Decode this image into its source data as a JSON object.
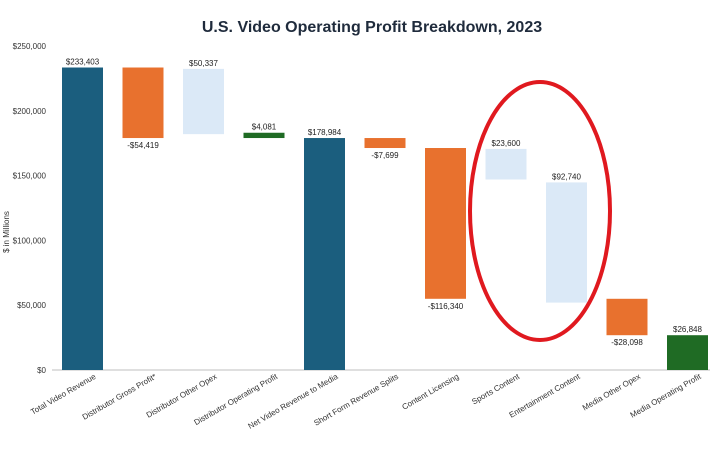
{
  "chart_data": {
    "type": "bar",
    "title": "U.S.  Video Operating Profit Breakdown, 2023",
    "ylabel": "$ in Millions",
    "xlabel": "",
    "ylim": [
      0,
      250000
    ],
    "yticks": [
      "$0",
      "$50,000",
      "$100,000",
      "$150,000",
      "$200,000",
      "$250,000"
    ],
    "ytick_values": [
      0,
      50000,
      100000,
      150000,
      200000,
      250000
    ],
    "grid": false,
    "categories": [
      "Total Video Revenue",
      "Distributor Gross Profit*",
      "Distributor Other Opex",
      "Distributor Operating Profit",
      "Net Video Revenue to Media",
      "Short Form Revenue Splits",
      "Content Licensing",
      "Sports Content",
      "Entertainment Content",
      "Media Other Opex",
      "Media Operating Profit"
    ],
    "bars": [
      {
        "low": 0,
        "high": 233403,
        "label": "$233,403",
        "kind": "total"
      },
      {
        "low": 178984,
        "high": 233403,
        "label": "-$54,419",
        "kind": "decrease"
      },
      {
        "low": 182000,
        "high": 232337,
        "label": "$50,337",
        "kind": "subcomponent"
      },
      {
        "low": 178984,
        "high": 183065,
        "label": "$4,081",
        "kind": "profit"
      },
      {
        "low": 0,
        "high": 178984,
        "label": "$178,984",
        "kind": "total"
      },
      {
        "low": 171285,
        "high": 178984,
        "label": "-$7,699",
        "kind": "decrease"
      },
      {
        "low": 54945,
        "high": 171285,
        "label": "-$116,340",
        "kind": "decrease"
      },
      {
        "low": 147000,
        "high": 170600,
        "label": "$23,600",
        "kind": "subcomponent"
      },
      {
        "low": 52000,
        "high": 144740,
        "label": "$92,740",
        "kind": "subcomponent"
      },
      {
        "low": 26847,
        "high": 54945,
        "label": "-$28,098",
        "kind": "decrease"
      },
      {
        "low": 0,
        "high": 26848,
        "label": "$26,848",
        "kind": "profit"
      }
    ],
    "colors": {
      "total": "#1b5e7e",
      "decrease": "#e8712e",
      "subcomponent": "#dbe9f7",
      "profit": "#1f6b24",
      "highlight": "#e0191f"
    },
    "annotation": {
      "type": "ellipse",
      "around": [
        "Sports Content",
        "Entertainment Content"
      ]
    }
  }
}
